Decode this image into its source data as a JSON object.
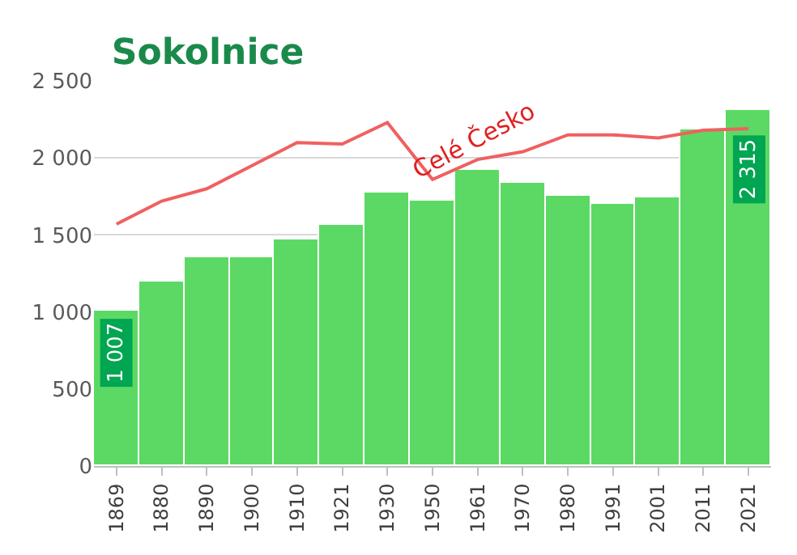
{
  "chart_data": {
    "type": "bar",
    "title": "Sokolnice",
    "categories": [
      "1869",
      "1880",
      "1890",
      "1900",
      "1910",
      "1921",
      "1930",
      "1950",
      "1961",
      "1970",
      "1980",
      "1991",
      "2001",
      "2011",
      "2021"
    ],
    "series": [
      {
        "color": "#5cd965",
        "values": [
          1007,
          1200,
          1360,
          1350,
          1470,
          1570,
          1780,
          1720,
          1920,
          1840,
          1750,
          1700,
          1740,
          2190,
          2315
        ],
        "value_labels": [
          "1 007",
          null,
          null,
          null,
          null,
          null,
          null,
          null,
          null,
          null,
          null,
          null,
          null,
          null,
          "2 315"
        ]
      },
      {
        "type": "line",
        "name": "Celé Česko",
        "color": "#f06060",
        "values": [
          1570,
          1720,
          1800,
          1950,
          2100,
          2090,
          2230,
          1860,
          1990,
          2040,
          2150,
          2150,
          2130,
          2180,
          2190
        ]
      }
    ],
    "ylim": [
      0,
      2500
    ],
    "yticks": [
      0,
      {
        "value": 500,
        "label": "500"
      },
      {
        "value": 1000,
        "label": "1 000"
      },
      {
        "value": 1500,
        "label": "1 500"
      },
      {
        "value": 2000,
        "label": "2 000"
      },
      {
        "value": 2500,
        "label": "2 500"
      }
    ],
    "grid": "y",
    "legend": false,
    "marker": "none",
    "line_style": "solid"
  }
}
